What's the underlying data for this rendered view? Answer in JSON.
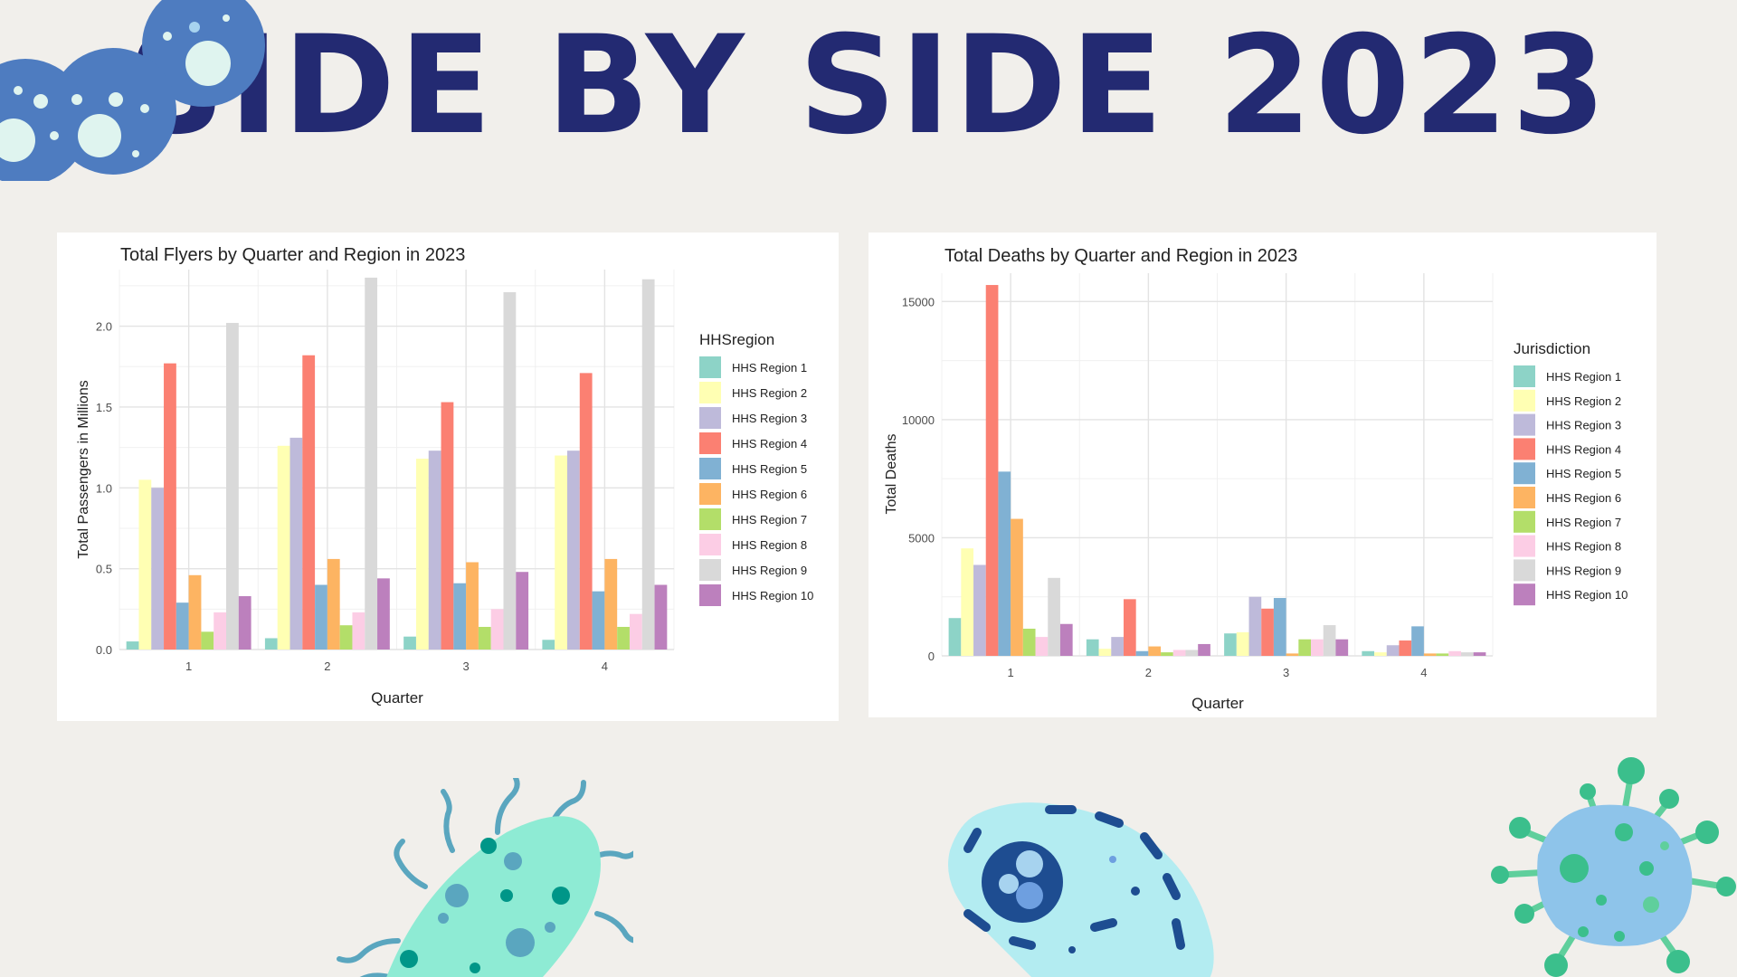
{
  "page": {
    "title": "SIDE BY SIDE 2023",
    "background": "#f1efeb",
    "title_color": "#232a72"
  },
  "palette": [
    "#8dd3c7",
    "#ffffb3",
    "#bebada",
    "#fb8072",
    "#80b1d3",
    "#fdb462",
    "#b3de69",
    "#fccde5",
    "#d9d9d9",
    "#bc80bd"
  ],
  "decorations": [
    "virus-cluster-icon",
    "bacterium-icon",
    "cell-icon",
    "virus-icon"
  ],
  "chart_data": [
    {
      "type": "bar",
      "title": "Total Flyers by Quarter and Region in 2023",
      "xlabel": "Quarter",
      "ylabel": "Total Passengers in Millions",
      "categories": [
        "1",
        "2",
        "3",
        "4"
      ],
      "ylim": [
        0,
        2.35
      ],
      "yticks": [
        "0.0",
        "0.5",
        "1.0",
        "1.5",
        "2.0"
      ],
      "ytick_values": [
        0,
        0.5,
        1.0,
        1.5,
        2.0
      ],
      "grid": true,
      "legend_title": "HHSregion",
      "legend_position": "right",
      "series": [
        {
          "name": "HHS Region 1",
          "values": [
            0.05,
            0.07,
            0.08,
            0.06
          ]
        },
        {
          "name": "HHS Region 2",
          "values": [
            1.05,
            1.26,
            1.18,
            1.2
          ]
        },
        {
          "name": "HHS Region 3",
          "values": [
            1.0,
            1.31,
            1.23,
            1.23
          ]
        },
        {
          "name": "HHS Region 4",
          "values": [
            1.77,
            1.82,
            1.53,
            1.71
          ]
        },
        {
          "name": "HHS Region 5",
          "values": [
            0.29,
            0.4,
            0.41,
            0.36
          ]
        },
        {
          "name": "HHS Region 6",
          "values": [
            0.46,
            0.56,
            0.54,
            0.56
          ]
        },
        {
          "name": "HHS Region 7",
          "values": [
            0.11,
            0.15,
            0.14,
            0.14
          ]
        },
        {
          "name": "HHS Region 8",
          "values": [
            0.23,
            0.23,
            0.25,
            0.22
          ]
        },
        {
          "name": "HHS Region 9",
          "values": [
            2.02,
            2.3,
            2.21,
            2.29
          ]
        },
        {
          "name": "HHS Region 10",
          "values": [
            0.33,
            0.44,
            0.48,
            0.4
          ]
        }
      ]
    },
    {
      "type": "bar",
      "title": "Total Deaths by Quarter and Region in 2023",
      "xlabel": "Quarter",
      "ylabel": "Total Deaths",
      "categories": [
        "1",
        "2",
        "3",
        "4"
      ],
      "ylim": [
        0,
        16200
      ],
      "yticks": [
        "0",
        "5000",
        "10000",
        "15000"
      ],
      "ytick_values": [
        0,
        5000,
        10000,
        15000
      ],
      "grid": true,
      "legend_title": "Jurisdiction",
      "legend_position": "right",
      "series": [
        {
          "name": "HHS Region 1",
          "values": [
            1600,
            700,
            950,
            200
          ]
        },
        {
          "name": "HHS Region 2",
          "values": [
            4550,
            300,
            1000,
            150
          ]
        },
        {
          "name": "HHS Region 3",
          "values": [
            3850,
            800,
            2500,
            450
          ]
        },
        {
          "name": "HHS Region 4",
          "values": [
            15700,
            2400,
            2000,
            650
          ]
        },
        {
          "name": "HHS Region 5",
          "values": [
            7800,
            200,
            2450,
            1250
          ]
        },
        {
          "name": "HHS Region 6",
          "values": [
            5800,
            400,
            100,
            100
          ]
        },
        {
          "name": "HHS Region 7",
          "values": [
            1150,
            150,
            700,
            100
          ]
        },
        {
          "name": "HHS Region 8",
          "values": [
            800,
            250,
            700,
            200
          ]
        },
        {
          "name": "HHS Region 9",
          "values": [
            3300,
            250,
            1300,
            150
          ]
        },
        {
          "name": "HHS Region 10",
          "values": [
            1350,
            500,
            700,
            150
          ]
        }
      ]
    }
  ]
}
